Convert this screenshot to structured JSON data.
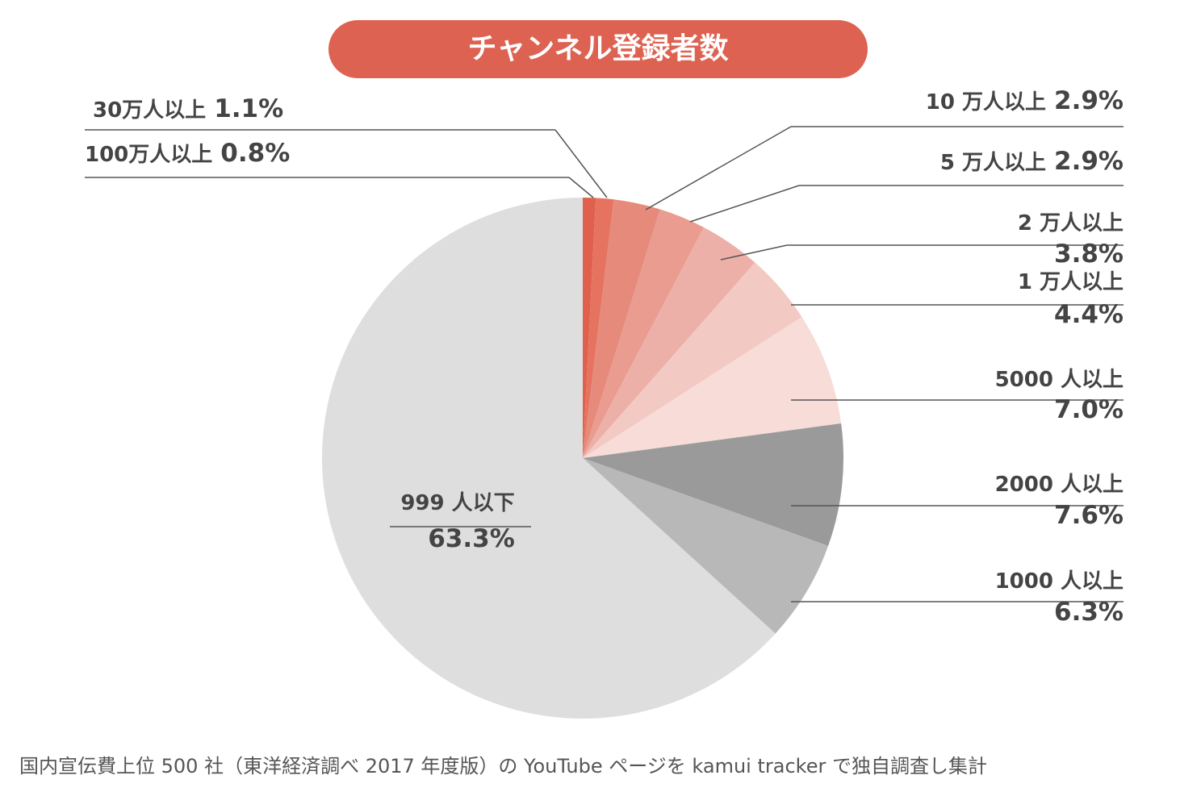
{
  "chart_data": {
    "type": "pie",
    "title": "チャンネル登録者数",
    "categories": [
      "100万人以上",
      "30万人以上",
      "10 万人以上",
      "5 万人以上",
      "2 万人以上",
      "1 万人以上",
      "5000 人以上",
      "2000 人以上",
      "1000 人以上",
      "999 人以下"
    ],
    "values": [
      0.8,
      1.1,
      2.9,
      2.9,
      3.8,
      4.4,
      7.0,
      7.6,
      6.3,
      63.3
    ],
    "value_labels": [
      "0.8%",
      "1.1%",
      "2.9%",
      "2.9%",
      "3.8%",
      "4.4%",
      "7.0%",
      "7.6%",
      "6.3%",
      "63.3%"
    ],
    "colors": [
      "#e0604e",
      "#e5735f",
      "#e68a7b",
      "#e99c8f",
      "#edb0a8",
      "#f2c9c3",
      "#f7dcd8",
      "#9a9a9a",
      "#b8b8b8",
      "#dedede"
    ],
    "note": "国内宣伝費上位 500 社（東洋経済調べ 2017 年度版）の YouTube ページを kamui tracker で独自調査し集計"
  }
}
